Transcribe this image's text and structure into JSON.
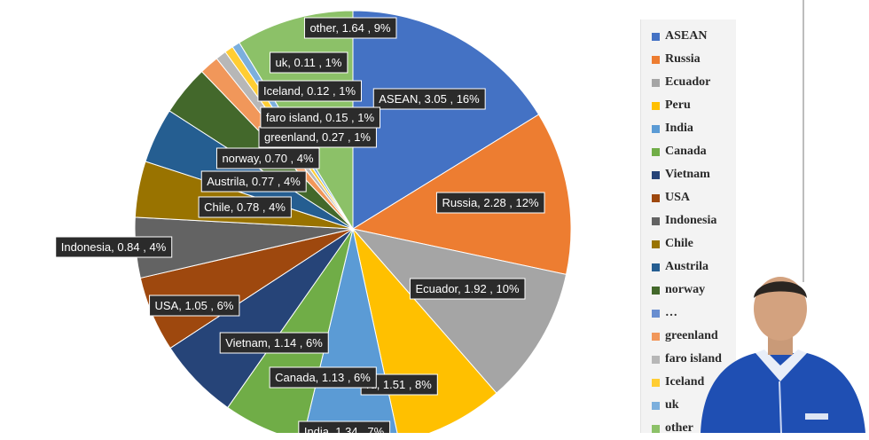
{
  "chart_data": {
    "type": "pie",
    "slices": [
      {
        "label": "ASEAN",
        "value": 3.05,
        "pct": "16%",
        "color": "#4472c4",
        "text": "ASEAN, 3.05 , 16%"
      },
      {
        "label": "Russia",
        "value": 2.28,
        "pct": "12%",
        "color": "#ed7d31",
        "text": "Russia, 2.28 , 12%"
      },
      {
        "label": "Ecuador",
        "value": 1.92,
        "pct": "10%",
        "color": "#a5a5a5",
        "text": "Ecuador, 1.92 , 10%"
      },
      {
        "label": "Peru",
        "value": 1.51,
        "pct": "8%",
        "color": "#ffc000",
        "text": "ru, 1.51 , 8%"
      },
      {
        "label": "India",
        "value": 1.34,
        "pct": "7%",
        "color": "#5b9bd5",
        "text": "India, 1.34 , 7%"
      },
      {
        "label": "Canada",
        "value": 1.13,
        "pct": "6%",
        "color": "#70ad47",
        "text": "Canada, 1.13 , 6%"
      },
      {
        "label": "Vietnam",
        "value": 1.14,
        "pct": "6%",
        "color": "#264478",
        "text": "Vietnam, 1.14 , 6%"
      },
      {
        "label": "USA",
        "value": 1.05,
        "pct": "6%",
        "color": "#9e480e",
        "text": "USA, 1.05 , 6%"
      },
      {
        "label": "Indonesia",
        "value": 0.84,
        "pct": "4%",
        "color": "#636363",
        "text": "Indonesia, 0.84 , 4%"
      },
      {
        "label": "Chile",
        "value": 0.78,
        "pct": "4%",
        "color": "#997300",
        "text": "Chile, 0.78 , 4%"
      },
      {
        "label": "Austrila",
        "value": 0.77,
        "pct": "4%",
        "color": "#255e91",
        "text": "Austrila, 0.77 , 4%"
      },
      {
        "label": "norway",
        "value": 0.7,
        "pct": "4%",
        "color": "#43682b",
        "text": "norway, 0.70 , 4%"
      },
      {
        "label": "…",
        "value": 0,
        "pct": "",
        "color": "#698ed0",
        "text": ""
      },
      {
        "label": "greenland",
        "value": 0.27,
        "pct": "1%",
        "color": "#f1975a",
        "text": "greenland, 0.27 , 1%"
      },
      {
        "label": "faro island",
        "value": 0.15,
        "pct": "1%",
        "color": "#b7b7b7",
        "text": "faro island, 0.15 , 1%"
      },
      {
        "label": "Iceland",
        "value": 0.12,
        "pct": "1%",
        "color": "#ffcd33",
        "text": "Iceland, 0.12 , 1%"
      },
      {
        "label": "uk",
        "value": 0.11,
        "pct": "1%",
        "color": "#7cafdd",
        "text": "uk, 0.11 , 1%"
      },
      {
        "label": "other",
        "value": 1.64,
        "pct": "9%",
        "color": "#8cc168",
        "text": "other, 1.64 , 9%"
      }
    ],
    "legend": [
      "ASEAN",
      "Russia",
      "Ecuador",
      "Peru",
      "India",
      "Canada",
      "Vietnam",
      "USA",
      "Indonesia",
      "Chile",
      "Austrila",
      "norway",
      "…",
      "greenland",
      "faro island",
      "Iceland",
      "uk",
      "other"
    ],
    "legend_position": "right",
    "start_angle": "12 o'clock, clockwise"
  }
}
